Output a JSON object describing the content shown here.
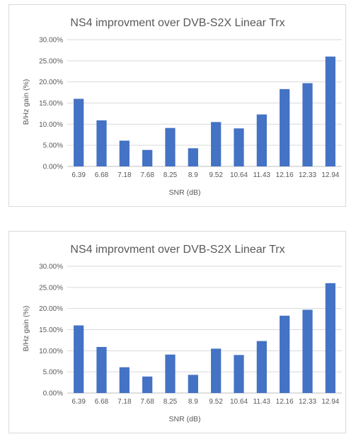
{
  "chart_data": [
    {
      "type": "bar",
      "title": "NS4 improvment over DVB-S2X Linear Trx",
      "xlabel": "SNR (dB)",
      "ylabel": "B/Hz gain (%)",
      "categories": [
        "6.39",
        "6.68",
        "7.18",
        "7.68",
        "8.25",
        "8.9",
        "9.52",
        "10.64",
        "11.43",
        "12.16",
        "12.33",
        "12.94"
      ],
      "values": [
        16.0,
        10.9,
        6.1,
        3.9,
        9.1,
        4.3,
        10.5,
        9.0,
        12.3,
        18.3,
        19.7,
        26.0
      ],
      "y_ticks": [
        "0.00%",
        "5.00%",
        "10.00%",
        "15.00%",
        "20.00%",
        "25.00%",
        "30.00%"
      ],
      "ylim": [
        0,
        30
      ],
      "grid": true,
      "legend": "none",
      "bar_color": "#4472c4"
    },
    {
      "type": "bar",
      "title": "NS4 improvment over DVB-S2X Linear Trx",
      "xlabel": "SNR (dB)",
      "ylabel": "B/Hz gain (%)",
      "categories": [
        "6.39",
        "6.68",
        "7.18",
        "7.68",
        "8.25",
        "8.9",
        "9.52",
        "10.64",
        "11.43",
        "12.16",
        "12.33",
        "12.94"
      ],
      "values": [
        16.0,
        10.9,
        6.1,
        3.9,
        9.1,
        4.3,
        10.5,
        9.0,
        12.3,
        18.3,
        19.7,
        26.0
      ],
      "y_ticks": [
        "0.00%",
        "5.00%",
        "10.00%",
        "15.00%",
        "20.00%",
        "25.00%",
        "30.00%"
      ],
      "ylim": [
        0,
        30
      ],
      "grid": true,
      "legend": "none",
      "bar_color": "#4472c4"
    }
  ]
}
